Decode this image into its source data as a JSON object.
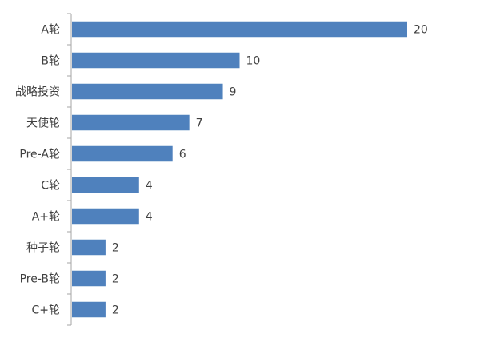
{
  "chart_data": {
    "type": "bar",
    "orientation": "horizontal",
    "categories": [
      "A轮",
      "B轮",
      "战略投资",
      "天使轮",
      "Pre-A轮",
      "C轮",
      "A+轮",
      "种子轮",
      "Pre-B轮",
      "C+轮"
    ],
    "values": [
      20,
      10,
      9,
      7,
      6,
      4,
      4,
      2,
      2,
      2
    ],
    "xlim": [
      0,
      20
    ],
    "grid": false,
    "legend": "none",
    "bar_color": "#4f81bd",
    "axis_color": "#a6a6a6",
    "text_color": "#404040"
  }
}
